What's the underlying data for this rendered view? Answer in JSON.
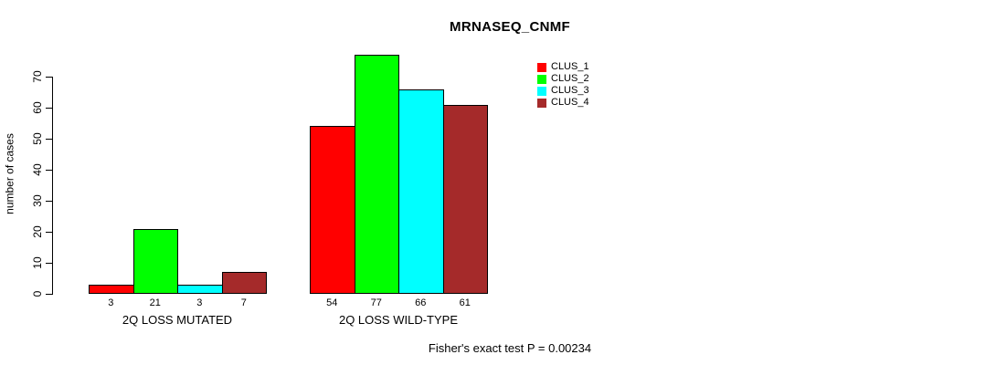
{
  "chart_data": {
    "type": "bar",
    "title": "MRNASEQ_CNMF",
    "ylabel": "number of cases",
    "xlabel": "",
    "categories": [
      "2Q LOSS MUTATED",
      "2Q LOSS WILD-TYPE"
    ],
    "series": [
      {
        "name": "CLUS_1",
        "color": "#ff0000",
        "values": [
          3,
          54
        ]
      },
      {
        "name": "CLUS_2",
        "color": "#00ff00",
        "values": [
          21,
          77
        ]
      },
      {
        "name": "CLUS_3",
        "color": "#00ffff",
        "values": [
          3,
          66
        ]
      },
      {
        "name": "CLUS_4",
        "color": "#a52a2a",
        "values": [
          7,
          61
        ]
      }
    ],
    "value_labels": [
      [
        "3",
        "21",
        "3",
        "7"
      ],
      [
        "54",
        "77",
        "66",
        "61"
      ]
    ],
    "yticks": [
      0,
      10,
      20,
      30,
      40,
      50,
      60,
      70
    ],
    "ylim": [
      0,
      77
    ],
    "grid": false,
    "bar_border_color": "#000000",
    "legend_position": "top-right",
    "legend_entries": [
      "CLUS_1",
      "CLUS_2",
      "CLUS_3",
      "CLUS_4"
    ],
    "annotation": "Fisher's exact test P = 0.00234"
  }
}
